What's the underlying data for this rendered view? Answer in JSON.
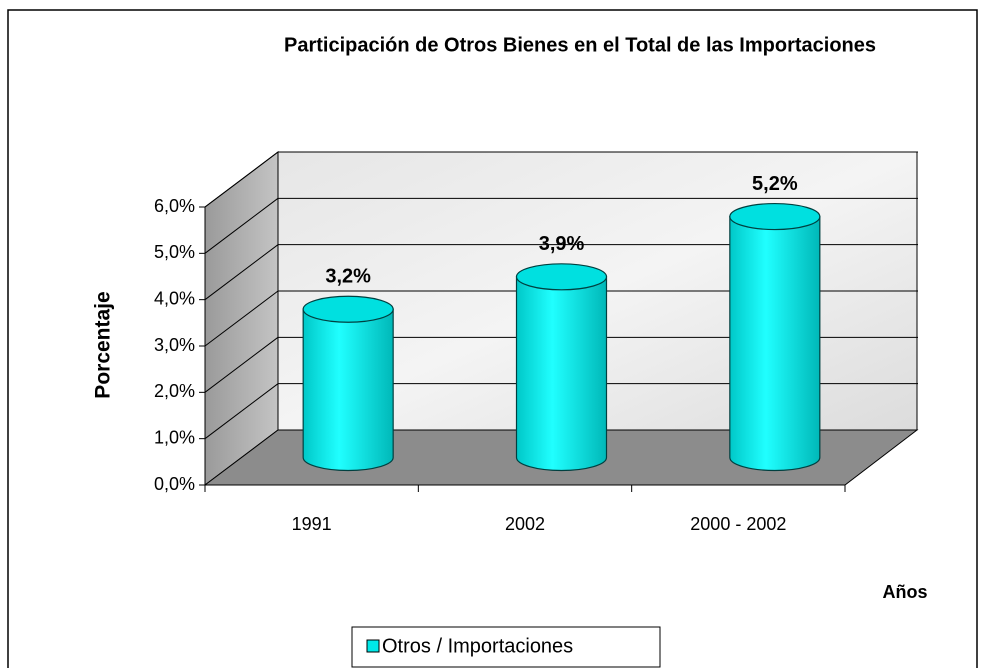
{
  "chart_data": {
    "type": "bar3d",
    "title": "Participación de Otros Bienes en el Total de las  Importaciones",
    "y_label": "Porcentaje",
    "x_label": "Años",
    "categories": [
      "1991",
      "2002",
      "2000 - 2002"
    ],
    "series": [
      {
        "name": "Otros / Importaciones",
        "color": "#00e8e8",
        "values": [
          3.2,
          3.9,
          5.2
        ],
        "value_labels": [
          "3,2%",
          "3,9%",
          "5,2%"
        ]
      }
    ],
    "ylim": [
      0,
      6
    ],
    "yticks": [
      {
        "value": 0,
        "label": "0,0%"
      },
      {
        "value": 1,
        "label": "1,0%"
      },
      {
        "value": 2,
        "label": "2,0%"
      },
      {
        "value": 3,
        "label": "3,0%"
      },
      {
        "value": 4,
        "label": "4,0%"
      },
      {
        "value": 5,
        "label": "5,0%"
      },
      {
        "value": 6,
        "label": "6,0%"
      }
    ],
    "grid": true,
    "legend": "bottom"
  }
}
